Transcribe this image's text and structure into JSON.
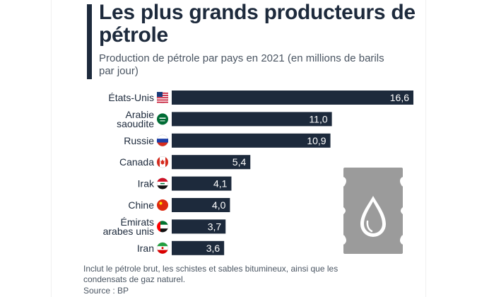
{
  "header": {
    "title": "Les plus grands producteurs de pétrole",
    "subtitle": "Production de pétrole par pays en 2021 (en millions de barils par jour)"
  },
  "footer": {
    "note": "Inclut le pétrole brut, les schistes et sables bitumineux, ainsi que les condensats de gaz naturel.",
    "source": "Source : BP"
  },
  "colors": {
    "bar": "#1d2a3c",
    "text": "#1d2a3c",
    "muted": "#4a5562",
    "barrel": "#9b9b9b"
  },
  "icons": [
    "flag-usa-icon",
    "flag-saudi-icon",
    "flag-russia-icon",
    "flag-canada-icon",
    "flag-iraq-icon",
    "flag-china-icon",
    "flag-uae-icon",
    "flag-iran-icon",
    "oil-barrel-icon"
  ],
  "chart_data": {
    "type": "bar",
    "orientation": "horizontal",
    "categories": [
      [
        "États-Unis"
      ],
      [
        "Arabie",
        "saoudite"
      ],
      [
        "Russie"
      ],
      [
        "Canada"
      ],
      [
        "Irak"
      ],
      [
        "Chine"
      ],
      [
        "Émirats",
        "arabes unis"
      ],
      [
        "Iran"
      ]
    ],
    "values": [
      16.6,
      11.0,
      10.9,
      5.4,
      4.1,
      4.0,
      3.7,
      3.6
    ],
    "value_labels": [
      "16,6",
      "11,0",
      "10,9",
      "5,4",
      "4,1",
      "4,0",
      "3,7",
      "3,6"
    ],
    "xlim": [
      0,
      16.6
    ],
    "grid": false
  }
}
